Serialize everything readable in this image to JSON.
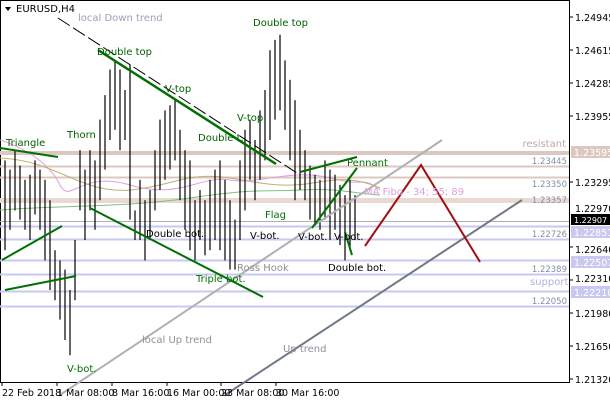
{
  "header": {
    "symbol_title": "EURUSD,H4",
    "menu_icon": "triangle-down-icon"
  },
  "colors": {
    "resistance": "#dcc8c0",
    "support": "#c8c8f0",
    "pattern_green": "#007000",
    "forecast_red": "#a01010",
    "trend_gray": "#a0a0a8",
    "up_trend": "#707888"
  },
  "annotations": {
    "local_down_trend": "local Down trend",
    "double_top_1": "Double top",
    "double_top_2": "Double top",
    "v_top_1": "V-top",
    "v_top_2": "V-top",
    "triangle": "Triangle",
    "thorn": "Thorn",
    "double_t": "Double t.",
    "pennant": "Pennant",
    "resistant": "resistant",
    "ma_fibo": "MA Fibo - 34; 55; 89",
    "flag": "Flag",
    "double_bot_1": "Double bot.",
    "double_bot_2": "Double bot.",
    "v_bot_1": "V-bot.",
    "v_bot_2": "V-bot.",
    "v_bot_3": "V-bot.",
    "v_bot_4": "V-bot.",
    "ross_hook": "Ross Hook",
    "triple_bot": "Triple bot.",
    "support": "support",
    "local_up_trend": "local Up trend",
    "up_trend": "Up trend"
  },
  "levels": {
    "l1": "1.23445",
    "l2": "1.23350",
    "l3": "1.23357",
    "l4": "1.22726",
    "l5": "1.22389",
    "l6": "1.22050"
  },
  "price_axis": {
    "ticks": [
      "1.24945",
      "1.24615",
      "1.24285",
      "1.23955",
      "1.23295",
      "1.22970",
      "1.22640",
      "1.22310",
      "1.21980",
      "1.21650",
      "1.21320"
    ],
    "resistance_box": "1.23595",
    "current_price": "1.22907",
    "box_22851": "1.22851",
    "box_22507": "1.22507",
    "box_22210": "1.22210"
  },
  "time_axis": {
    "ticks": [
      "22 Feb 2018",
      "1 Mar 08:00",
      "8 Mar 16:00",
      "16 Mar 00:00",
      "23 Mar 08:00",
      "30 Mar 16:00"
    ]
  },
  "chart_data": {
    "type": "ohlc",
    "symbol": "EURUSD",
    "timeframe": "H4",
    "ylim": [
      1.2132,
      1.25
    ],
    "bars_high_low": [
      [
        1.2355,
        1.2267
      ],
      [
        1.2346,
        1.2287
      ],
      [
        1.2365,
        1.2306
      ],
      [
        1.235,
        1.2297
      ],
      [
        1.2336,
        1.2287
      ],
      [
        1.2341,
        1.2277
      ],
      [
        1.2355,
        1.2302
      ],
      [
        1.2346,
        1.2287
      ],
      [
        1.2336,
        1.2257
      ],
      [
        1.2316,
        1.2228
      ],
      [
        1.2267,
        1.2218
      ],
      [
        1.2257,
        1.2199
      ],
      [
        1.2248,
        1.2179
      ],
      [
        1.2228,
        1.2164
      ],
      [
        1.2277,
        1.2218
      ],
      [
        1.2365,
        1.2306
      ],
      [
        1.2346,
        1.2277
      ],
      [
        1.2365,
        1.2306
      ],
      [
        1.2355,
        1.2287
      ],
      [
        1.2395,
        1.2316
      ],
      [
        1.2419,
        1.2346
      ],
      [
        1.2444,
        1.2375
      ],
      [
        1.2453,
        1.2385
      ],
      [
        1.2444,
        1.2365
      ],
      [
        1.2424,
        1.2375
      ],
      [
        1.2449,
        1.2297
      ],
      [
        1.2306,
        1.2277
      ],
      [
        1.2336,
        1.2277
      ],
      [
        1.2316,
        1.2257
      ],
      [
        1.2326,
        1.2277
      ],
      [
        1.2365,
        1.2306
      ],
      [
        1.2395,
        1.2326
      ],
      [
        1.2404,
        1.2336
      ],
      [
        1.2409,
        1.2346
      ],
      [
        1.2414,
        1.2355
      ],
      [
        1.2385,
        1.2316
      ],
      [
        1.2365,
        1.2287
      ],
      [
        1.2355,
        1.2267
      ],
      [
        1.2316,
        1.2257
      ],
      [
        1.2326,
        1.2277
      ],
      [
        1.2316,
        1.2262
      ],
      [
        1.2336,
        1.2267
      ],
      [
        1.2346,
        1.2277
      ],
      [
        1.2355,
        1.2267
      ],
      [
        1.2336,
        1.2257
      ],
      [
        1.2316,
        1.2248
      ],
      [
        1.2297,
        1.2248
      ],
      [
        1.2355,
        1.2277
      ],
      [
        1.2385,
        1.2306
      ],
      [
        1.2395,
        1.2336
      ],
      [
        1.2375,
        1.2316
      ],
      [
        1.2404,
        1.2336
      ],
      [
        1.2424,
        1.2355
      ],
      [
        1.2463,
        1.2375
      ],
      [
        1.2473,
        1.2395
      ],
      [
        1.2478,
        1.2404
      ],
      [
        1.2453,
        1.2385
      ],
      [
        1.2434,
        1.2355
      ],
      [
        1.2414,
        1.2316
      ],
      [
        1.2385,
        1.2326
      ],
      [
        1.2365,
        1.2316
      ],
      [
        1.235,
        1.2297
      ],
      [
        1.2341,
        1.2292
      ],
      [
        1.2336,
        1.2287
      ],
      [
        1.2355,
        1.2297
      ],
      [
        1.2346,
        1.2277
      ],
      [
        1.2341,
        1.2287
      ],
      [
        1.2331,
        1.2272
      ],
      [
        1.2321,
        1.2257
      ],
      [
        1.2336,
        1.2267
      ],
      [
        1.2321,
        1.2277
      ]
    ]
  }
}
